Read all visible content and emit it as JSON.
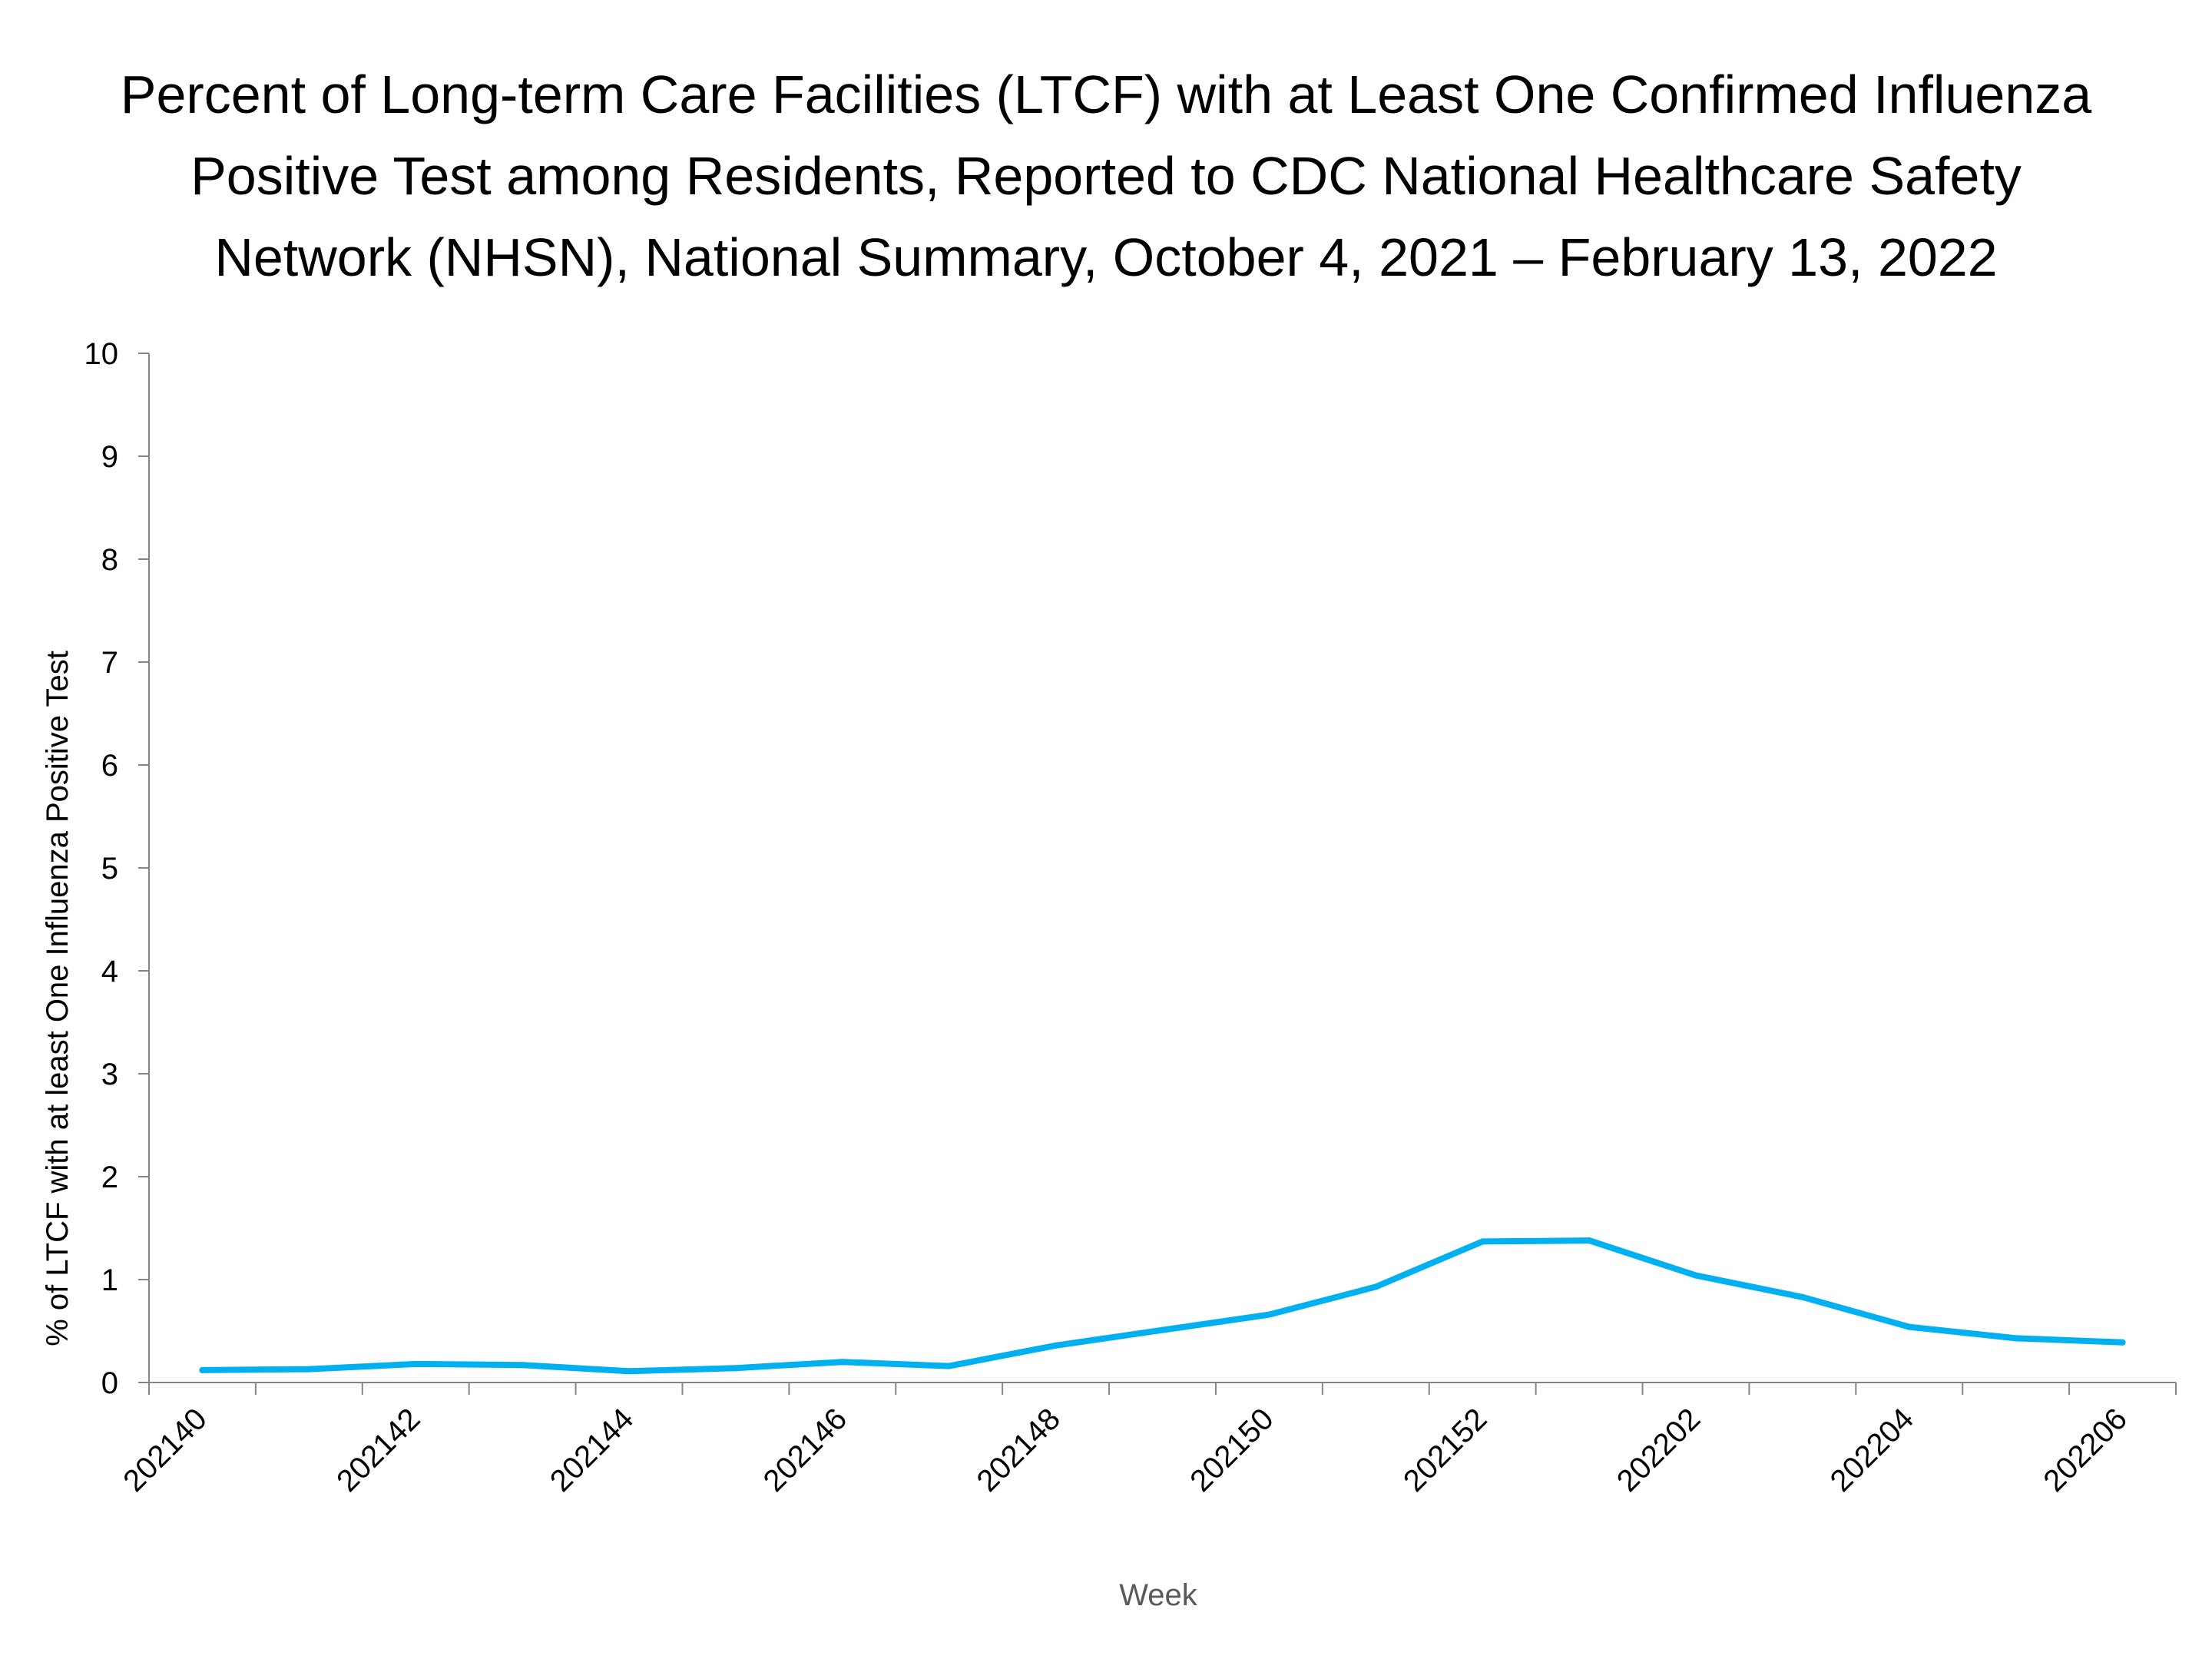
{
  "chart_data": {
    "type": "line",
    "title_lines": [
      "Percent of Long-term Care Facilities (LTCF) with at Least One Confirmed Influenza",
      "Positive Test among Residents, Reported to CDC National Healthcare Safety",
      "Network (NHSN), National Summary, October 4, 2021 – February 13, 2022"
    ],
    "xlabel": "Week",
    "ylabel": "% of LTCF with at least One Influenza Positive Test",
    "ylim": [
      0,
      10
    ],
    "yticks": [
      0,
      1,
      2,
      3,
      4,
      5,
      6,
      7,
      8,
      9,
      10
    ],
    "x": [
      "202140",
      "202141",
      "202142",
      "202143",
      "202144",
      "202145",
      "202146",
      "202147",
      "202148",
      "202149",
      "202150",
      "202151",
      "202152",
      "202201",
      "202202",
      "202203",
      "202204",
      "202205",
      "202206"
    ],
    "xtick_labels": [
      "202140",
      "202142",
      "202144",
      "202146",
      "202148",
      "202150",
      "202152",
      "202202",
      "202204",
      "202206"
    ],
    "series": [
      {
        "values": [
          0.12,
          0.13,
          0.18,
          0.17,
          0.11,
          0.14,
          0.2,
          0.16,
          0.36,
          0.51,
          0.66,
          0.93,
          1.37,
          1.38,
          1.04,
          0.83,
          0.54,
          0.43,
          0.39
        ],
        "color": "#00B0F0"
      }
    ],
    "grid": false,
    "legend": "none"
  }
}
